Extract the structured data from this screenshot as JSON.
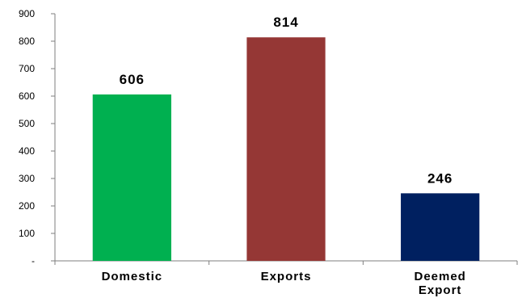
{
  "chart_data": {
    "type": "bar",
    "categories": [
      "Domestic",
      "Exports",
      "Deemed Export"
    ],
    "category_lines": [
      [
        "Domestic"
      ],
      [
        "Exports"
      ],
      [
        "Deemed",
        "Export"
      ]
    ],
    "values": [
      606,
      814,
      246
    ],
    "data_labels": [
      "606",
      "814",
      "246"
    ],
    "colors": [
      "#00B050",
      "#953735",
      "#002060"
    ],
    "y_ticks": [
      0,
      100,
      200,
      300,
      400,
      500,
      600,
      700,
      800,
      900
    ],
    "y_tick_labels": [
      "-",
      "100",
      "200",
      "300",
      "400",
      "500",
      "600",
      "700",
      "800",
      "900"
    ],
    "ylim": [
      0,
      900
    ],
    "title": "",
    "xlabel": "",
    "ylabel": "",
    "grid": false,
    "legend": "none"
  }
}
